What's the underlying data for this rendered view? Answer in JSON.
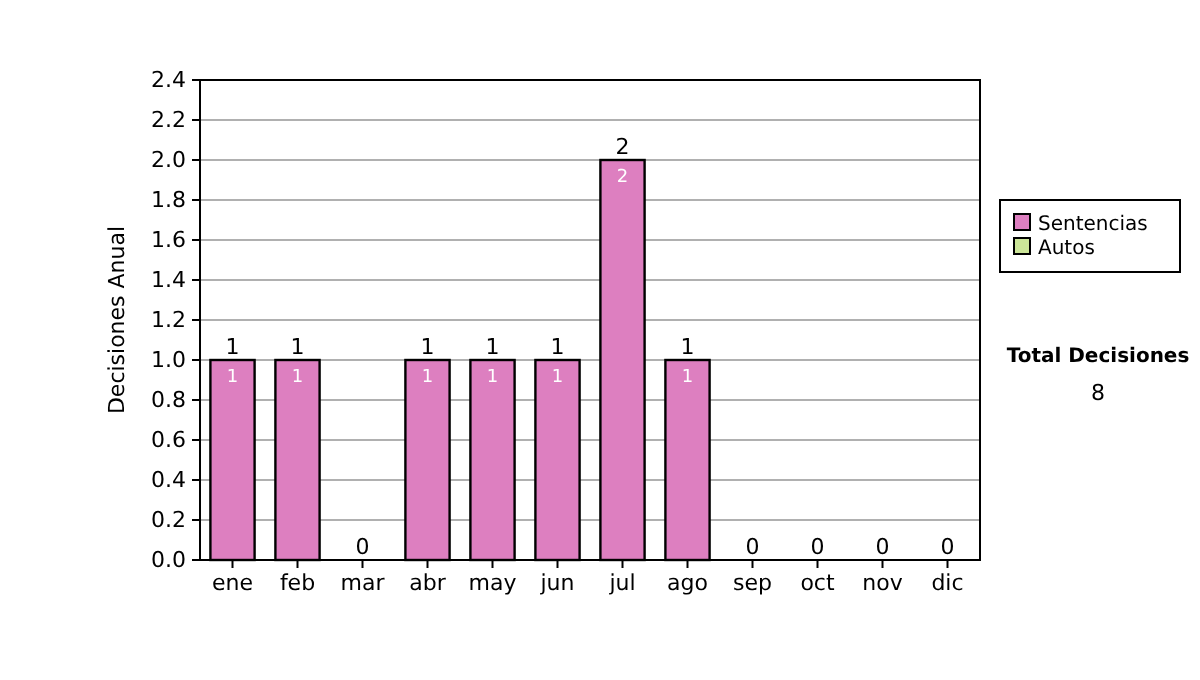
{
  "chart_data": {
    "type": "bar",
    "ylabel": "Decisiones Anual",
    "stacked": true,
    "categories": [
      "ene",
      "feb",
      "mar",
      "abr",
      "may",
      "jun",
      "jul",
      "ago",
      "sep",
      "oct",
      "nov",
      "dic"
    ],
    "series": [
      {
        "name": "Sentencias",
        "color": "#dd7fc0",
        "values": [
          1,
          1,
          0,
          1,
          1,
          1,
          2,
          1,
          0,
          0,
          0,
          0
        ],
        "value_labels": [
          "1",
          "1",
          null,
          "1",
          "1",
          "1",
          "2",
          "1",
          null,
          null,
          null,
          null
        ]
      },
      {
        "name": "Autos",
        "color": "#cce699",
        "values": [
          0,
          0,
          0,
          0,
          0,
          0,
          0,
          0,
          0,
          0,
          0,
          0
        ]
      }
    ],
    "totals": [
      "1",
      "1",
      "0",
      "1",
      "1",
      "1",
      "2",
      "1",
      "0",
      "0",
      "0",
      "0"
    ],
    "ylim": [
      0,
      2.4
    ],
    "yticks": [
      {
        "value": 0,
        "label": "0.0"
      },
      {
        "value": 0.2,
        "label": "0.2"
      },
      {
        "value": 0.4,
        "label": "0.4"
      },
      {
        "value": 0.6,
        "label": "0.6"
      },
      {
        "value": 0.8,
        "label": "0.8"
      },
      {
        "value": 1,
        "label": "1.0"
      },
      {
        "value": 1.2,
        "label": "1.2"
      },
      {
        "value": 1.4,
        "label": "1.4"
      },
      {
        "value": 1.6,
        "label": "1.6"
      },
      {
        "value": 1.8,
        "label": "1.8"
      },
      {
        "value": 2,
        "label": "2.0"
      },
      {
        "value": 2.2,
        "label": "2.2"
      },
      {
        "value": 2.4,
        "label": "2.4"
      }
    ],
    "grid": "y",
    "legend": "right",
    "annotations": [
      "Total Decisiones",
      "8"
    ]
  }
}
